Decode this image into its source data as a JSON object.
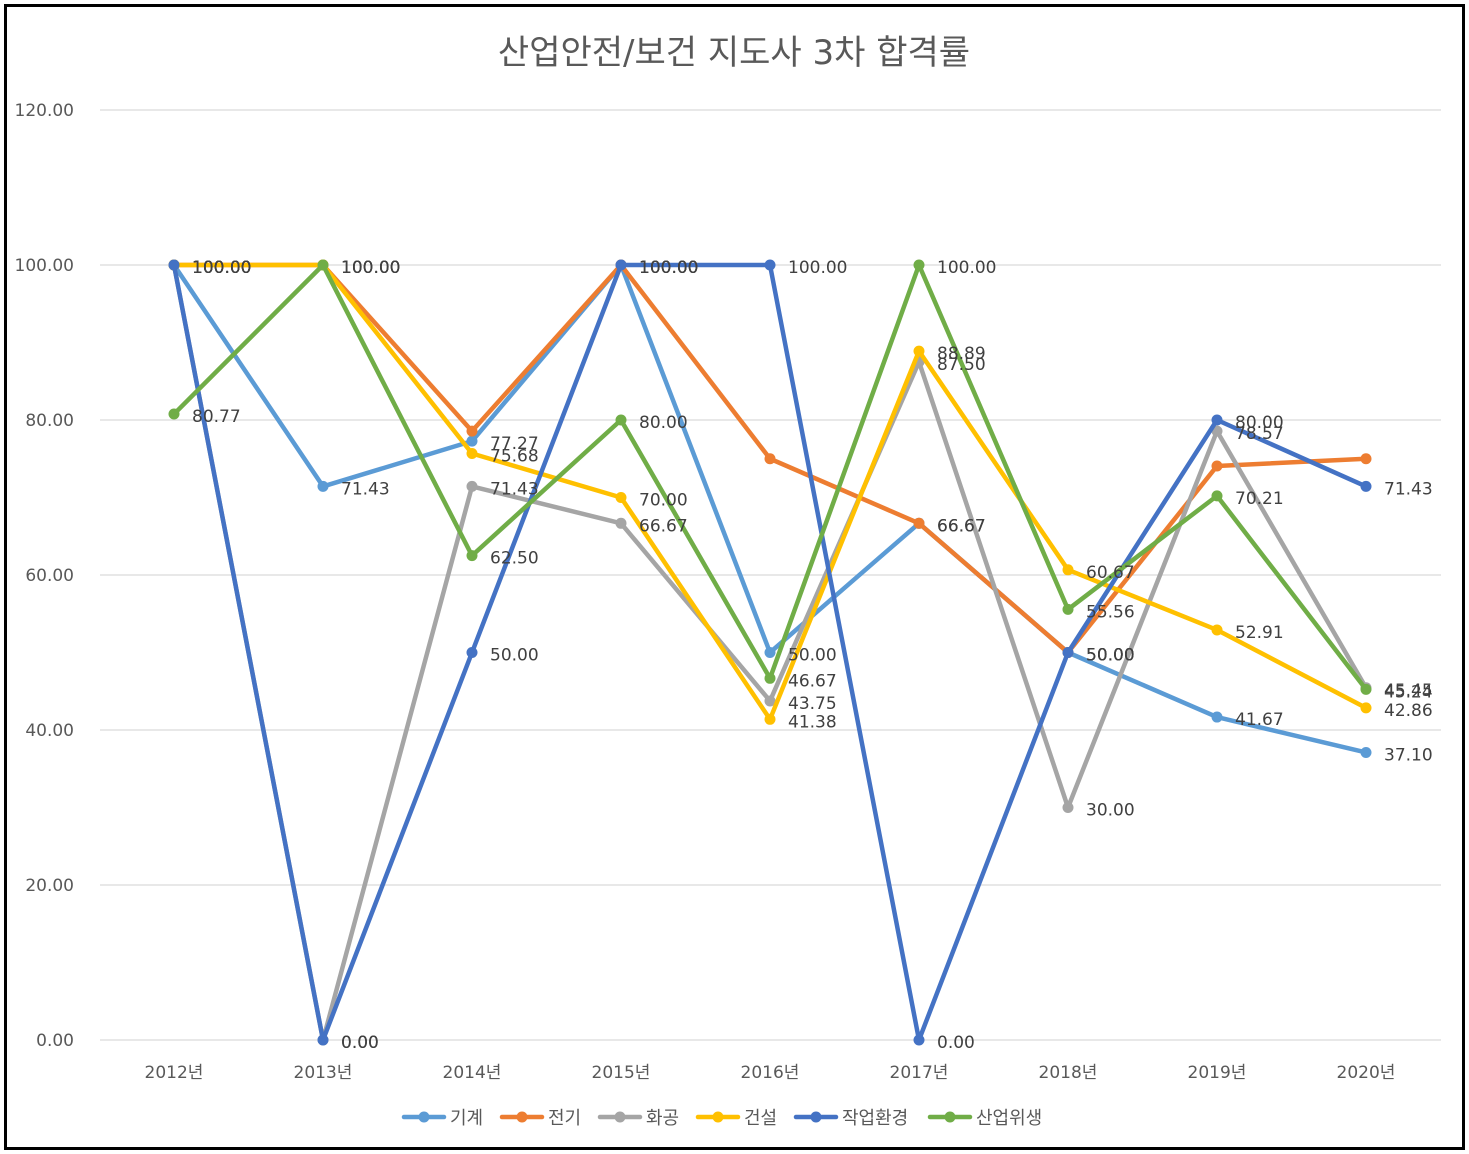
{
  "chart_data": {
    "type": "line",
    "title": "산업안전/보건 지도사 3차 합격률",
    "xlabel": "",
    "ylabel": "",
    "categories": [
      "2012년",
      "2013년",
      "2014년",
      "2015년",
      "2016년",
      "2017년",
      "2018년",
      "2019년",
      "2020년"
    ],
    "ylim": [
      0,
      120
    ],
    "yticks": [
      "0.00",
      "20.00",
      "40.00",
      "60.00",
      "80.00",
      "100.00",
      "120.00"
    ],
    "ytick_values": [
      0,
      20,
      40,
      60,
      80,
      100,
      120
    ],
    "grid": true,
    "legend_position": "bottom",
    "series": [
      {
        "name": "기계",
        "color": "#5B9BD5",
        "values": [
          100.0,
          71.43,
          77.27,
          100.0,
          50.0,
          66.67,
          50.0,
          41.67,
          37.1
        ]
      },
      {
        "name": "전기",
        "color": "#ED7D31",
        "values": [
          100.0,
          100.0,
          78.57,
          100.0,
          75.0,
          66.67,
          50.0,
          74.07,
          75.0
        ]
      },
      {
        "name": "화공",
        "color": "#A5A5A5",
        "values": [
          100.0,
          0.0,
          71.43,
          66.67,
          43.75,
          87.5,
          30.0,
          78.57,
          45.45
        ]
      },
      {
        "name": "건설",
        "color": "#FFC000",
        "values": [
          100.0,
          100.0,
          75.68,
          70.0,
          41.38,
          88.89,
          60.67,
          52.91,
          42.86
        ]
      },
      {
        "name": "작업환경",
        "color": "#4472C4",
        "values": [
          100.0,
          0.0,
          50.0,
          100.0,
          100.0,
          0.0,
          50.0,
          80.0,
          71.43
        ]
      },
      {
        "name": "산업위생",
        "color": "#70AD47",
        "values": [
          80.77,
          100.0,
          62.5,
          80.0,
          46.67,
          100.0,
          55.56,
          70.21,
          45.24
        ]
      }
    ],
    "data_labels": [
      {
        "series": 0,
        "point": 0,
        "text": "100.00"
      },
      {
        "series": 0,
        "point": 1,
        "text": "71.43"
      },
      {
        "series": 0,
        "point": 2,
        "text": "77.27"
      },
      {
        "series": 0,
        "point": 3,
        "text": "100.00"
      },
      {
        "series": 0,
        "point": 4,
        "text": "50.00"
      },
      {
        "series": 0,
        "point": 5,
        "text": "66.67"
      },
      {
        "series": 0,
        "point": 6,
        "text": "50.00"
      },
      {
        "series": 0,
        "point": 7,
        "text": "41.67"
      },
      {
        "series": 0,
        "point": 8,
        "text": "37.10"
      },
      {
        "series": 1,
        "point": 0,
        "text": "100.00"
      },
      {
        "series": 1,
        "point": 1,
        "text": "100.00"
      },
      {
        "series": 1,
        "point": 3,
        "text": "100.00"
      },
      {
        "series": 1,
        "point": 5,
        "text": "66.67"
      },
      {
        "series": 1,
        "point": 6,
        "text": "50.00"
      },
      {
        "series": 2,
        "point": 1,
        "text": "0.00"
      },
      {
        "series": 2,
        "point": 2,
        "text": "71.43"
      },
      {
        "series": 2,
        "point": 3,
        "text": "66.67"
      },
      {
        "series": 2,
        "point": 4,
        "text": "43.75"
      },
      {
        "series": 2,
        "point": 5,
        "text": "87.50"
      },
      {
        "series": 2,
        "point": 6,
        "text": "30.00"
      },
      {
        "series": 2,
        "point": 7,
        "text": "78.57"
      },
      {
        "series": 2,
        "point": 8,
        "text": "45.45"
      },
      {
        "series": 3,
        "point": 0,
        "text": "100.00"
      },
      {
        "series": 3,
        "point": 1,
        "text": "100.00"
      },
      {
        "series": 3,
        "point": 2,
        "text": "75.68"
      },
      {
        "series": 3,
        "point": 3,
        "text": "70.00"
      },
      {
        "series": 3,
        "point": 4,
        "text": "41.38"
      },
      {
        "series": 3,
        "point": 5,
        "text": "88.89"
      },
      {
        "series": 3,
        "point": 6,
        "text": "60.67"
      },
      {
        "series": 3,
        "point": 7,
        "text": "52.91"
      },
      {
        "series": 3,
        "point": 8,
        "text": "42.86"
      },
      {
        "series": 4,
        "point": 0,
        "text": "100.00"
      },
      {
        "series": 4,
        "point": 1,
        "text": "0.00"
      },
      {
        "series": 4,
        "point": 2,
        "text": "50.00"
      },
      {
        "series": 4,
        "point": 3,
        "text": "100.00"
      },
      {
        "series": 4,
        "point": 4,
        "text": "100.00"
      },
      {
        "series": 4,
        "point": 5,
        "text": "0.00"
      },
      {
        "series": 4,
        "point": 6,
        "text": "50.00"
      },
      {
        "series": 4,
        "point": 7,
        "text": "80.00"
      },
      {
        "series": 4,
        "point": 8,
        "text": "71.43"
      },
      {
        "series": 5,
        "point": 0,
        "text": "80.77"
      },
      {
        "series": 5,
        "point": 1,
        "text": "100.00"
      },
      {
        "series": 5,
        "point": 2,
        "text": "62.50"
      },
      {
        "series": 5,
        "point": 3,
        "text": "80.00"
      },
      {
        "series": 5,
        "point": 4,
        "text": "46.67"
      },
      {
        "series": 5,
        "point": 5,
        "text": "100.00"
      },
      {
        "series": 5,
        "point": 6,
        "text": "55.56"
      },
      {
        "series": 5,
        "point": 7,
        "text": "70.21"
      },
      {
        "series": 5,
        "point": 8,
        "text": "45.24"
      }
    ]
  }
}
